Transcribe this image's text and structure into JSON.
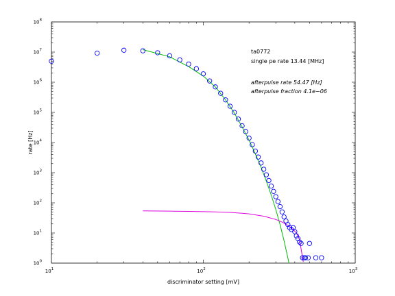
{
  "chart_data": {
    "type": "scatter",
    "x_scale": "log",
    "y_scale": "log",
    "xlim": [
      10,
      1000
    ],
    "ylim": [
      1,
      100000000
    ],
    "xlabel": "discriminator setting [mV]",
    "ylabel": "rate [Hz]",
    "x_ticks": [
      {
        "value": 10,
        "base": "10",
        "exp": "1"
      },
      {
        "value": 100,
        "base": "10",
        "exp": "2"
      },
      {
        "value": 1000,
        "base": "10",
        "exp": "3"
      }
    ],
    "y_ticks": [
      {
        "value": 1,
        "base": "10",
        "exp": "0"
      },
      {
        "value": 10,
        "base": "10",
        "exp": "1"
      },
      {
        "value": 100,
        "base": "10",
        "exp": "2"
      },
      {
        "value": 1000,
        "base": "10",
        "exp": "3"
      },
      {
        "value": 10000,
        "base": "10",
        "exp": "4"
      },
      {
        "value": 100000,
        "base": "10",
        "exp": "5"
      },
      {
        "value": 1000000,
        "base": "10",
        "exp": "6"
      },
      {
        "value": 10000000,
        "base": "10",
        "exp": "7"
      },
      {
        "value": 100000000,
        "base": "10",
        "exp": "8"
      }
    ],
    "grid": false,
    "series": [
      {
        "kind": "markers",
        "marker": "circle",
        "color": "#0000ff",
        "points": [
          [
            10,
            5000000
          ],
          [
            20,
            9200000
          ],
          [
            30,
            11500000
          ],
          [
            40,
            11000000
          ],
          [
            50,
            9500000
          ],
          [
            60,
            7500000
          ],
          [
            70,
            5500000
          ],
          [
            80,
            4000000
          ],
          [
            90,
            2800000
          ],
          [
            100,
            1900000
          ],
          [
            110,
            1100000
          ],
          [
            120,
            700000
          ],
          [
            130,
            430000
          ],
          [
            140,
            260000
          ],
          [
            150,
            160000
          ],
          [
            160,
            100000
          ],
          [
            170,
            60000
          ],
          [
            180,
            36000
          ],
          [
            190,
            23000
          ],
          [
            200,
            14000
          ],
          [
            210,
            8500
          ],
          [
            220,
            5200
          ],
          [
            230,
            3300
          ],
          [
            240,
            2100
          ],
          [
            250,
            1300
          ],
          [
            260,
            850
          ],
          [
            270,
            550
          ],
          [
            280,
            360
          ],
          [
            290,
            240
          ],
          [
            300,
            160
          ],
          [
            310,
            110
          ],
          [
            320,
            75
          ],
          [
            330,
            50
          ],
          [
            340,
            34
          ],
          [
            350,
            25
          ],
          [
            360,
            19
          ],
          [
            370,
            15
          ],
          [
            380,
            13
          ],
          [
            390,
            15
          ],
          [
            400,
            11
          ],
          [
            410,
            8
          ],
          [
            420,
            6.5
          ],
          [
            430,
            5
          ],
          [
            440,
            4.5
          ],
          [
            450,
            1.5
          ],
          [
            460,
            1.5
          ],
          [
            470,
            1.5
          ],
          [
            490,
            1.5
          ],
          [
            500,
            4.5
          ],
          [
            550,
            1.5
          ],
          [
            600,
            1.5
          ]
        ]
      },
      {
        "kind": "line",
        "color": "#00bb00",
        "points": [
          [
            40,
            12000000
          ],
          [
            60,
            7000000
          ],
          [
            80,
            3300000
          ],
          [
            100,
            1600000
          ],
          [
            120,
            700000
          ],
          [
            140,
            260000
          ],
          [
            160,
            95000
          ],
          [
            180,
            33000
          ],
          [
            200,
            12000
          ],
          [
            220,
            4200
          ],
          [
            240,
            1500
          ],
          [
            260,
            520
          ],
          [
            280,
            180
          ],
          [
            300,
            60
          ],
          [
            320,
            19
          ],
          [
            340,
            5.5
          ],
          [
            360,
            1.5
          ],
          [
            370,
            0.8
          ]
        ]
      },
      {
        "kind": "line",
        "color": "#dd00dd",
        "points": [
          [
            40,
            54
          ],
          [
            60,
            53
          ],
          [
            80,
            52
          ],
          [
            100,
            51
          ],
          [
            120,
            50
          ],
          [
            150,
            48
          ],
          [
            180,
            45
          ],
          [
            200,
            43
          ],
          [
            250,
            36
          ],
          [
            300,
            28
          ],
          [
            330,
            23
          ],
          [
            360,
            18
          ],
          [
            390,
            13
          ],
          [
            410,
            10
          ],
          [
            430,
            6
          ],
          [
            440,
            3
          ],
          [
            450,
            1.5
          ],
          [
            455,
            1.1
          ]
        ]
      }
    ],
    "annotations": [
      "ta0772",
      "single pe rate 13.44 [MHz]",
      "afterpulse rate 54.47 [Hz]",
      "afterpulse fraction 4.1e−06"
    ],
    "colors": {
      "markers": "#0000ff",
      "fit_main": "#00bb00",
      "fit_afterpulse": "#dd00dd",
      "axes": "#000000"
    }
  }
}
